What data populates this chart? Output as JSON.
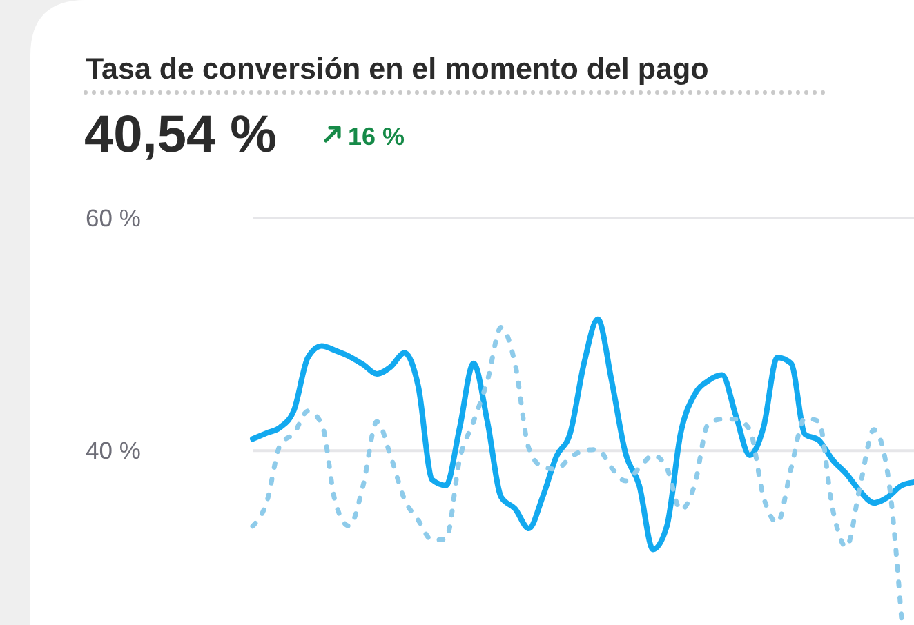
{
  "chart_data": {
    "type": "line",
    "title": "Tasa de conversión en el momento del pago",
    "annotations": [
      "40,54 %",
      "16 %"
    ],
    "categories": [
      null,
      null,
      null,
      null,
      null,
      null,
      null,
      null,
      null,
      null,
      null,
      null,
      null,
      null,
      null,
      null,
      null,
      null,
      null,
      null,
      null,
      null,
      null,
      null,
      null,
      null,
      null,
      null,
      null,
      null,
      null,
      null,
      null,
      null,
      null,
      null,
      null,
      null,
      null,
      null,
      null,
      null,
      null,
      null,
      null,
      null,
      null,
      null,
      null
    ],
    "series": [
      {
        "color": "#13a9ef",
        "line_style": "solid",
        "values": [
          41.0,
          41.5,
          42.0,
          43.5,
          48.0,
          49.0,
          48.6,
          48.1,
          47.4,
          46.6,
          47.2,
          48.4,
          45.5,
          37.5,
          37.0,
          42.0,
          47.5,
          42.5,
          36.0,
          35.0,
          33.3,
          36.0,
          39.5,
          41.5,
          47.5,
          51.3,
          46.0,
          39.8,
          37.0,
          31.5,
          33.5,
          41.5,
          44.8,
          46.0,
          46.5,
          43.0,
          39.6,
          42.0,
          48.0,
          47.5,
          41.4,
          40.9,
          39.2,
          38.0,
          36.5,
          35.5,
          36.0,
          37.0,
          37.3
        ]
      },
      {
        "color": "#8ecbea",
        "line_style": "dotted",
        "values": [
          33.5,
          35.5,
          40.5,
          41.5,
          43.4,
          42.3,
          35.5,
          33.5,
          37.0,
          42.5,
          39.5,
          35.8,
          34.0,
          32.3,
          32.4,
          39.3,
          42.5,
          46.0,
          50.6,
          47.5,
          40.2,
          38.6,
          38.4,
          39.4,
          40.0,
          40.1,
          38.5,
          37.4,
          38.5,
          39.6,
          38.5,
          34.9,
          37.0,
          42.3,
          42.7,
          42.7,
          41.8,
          36.0,
          33.8,
          38.5,
          42.8,
          42.5,
          35.0,
          31.7,
          37.0,
          41.8,
          38.0,
          25.5,
          null
        ]
      }
    ],
    "ylim": [
      25,
      60
    ],
    "yticks": [
      {
        "value": 40,
        "label": "40 %"
      },
      {
        "value": 60,
        "label": "60 %"
      }
    ],
    "grid": "y",
    "tick_labels": "y",
    "marker": "none"
  }
}
